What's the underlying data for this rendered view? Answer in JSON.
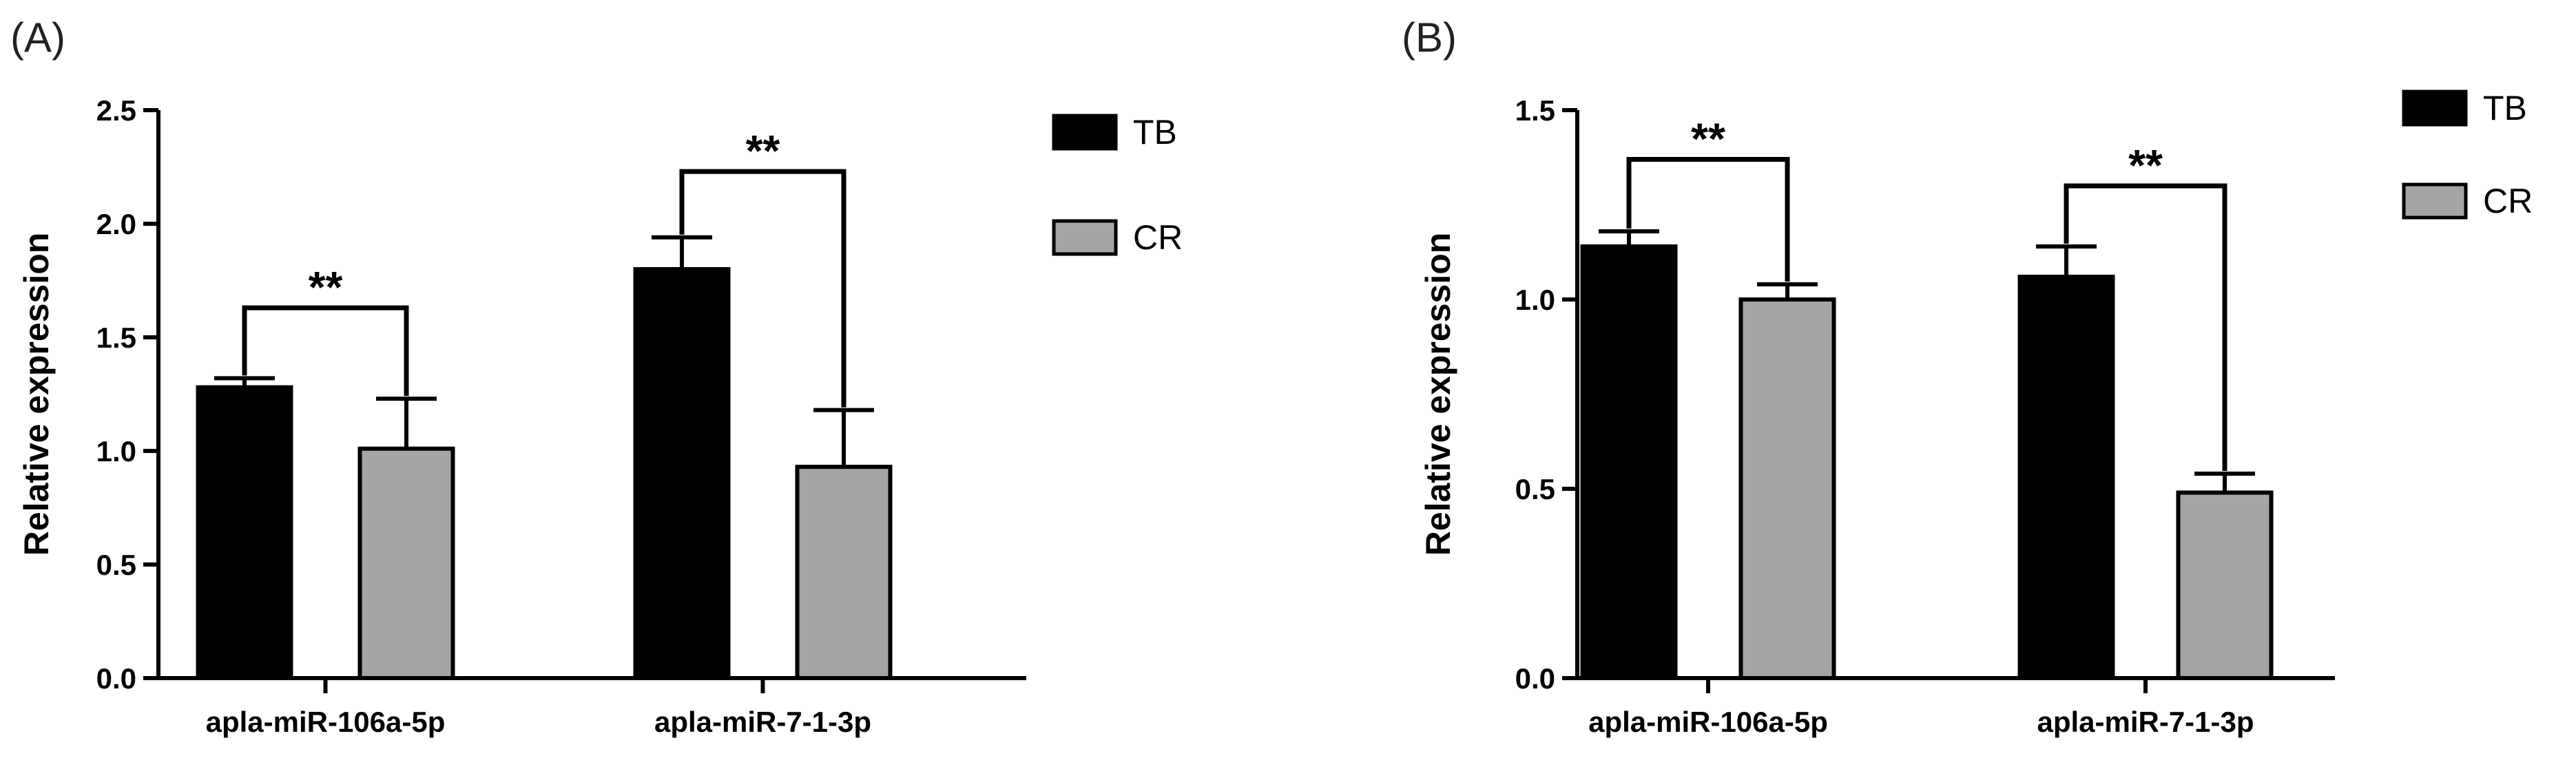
{
  "colors": {
    "TB": "#000000",
    "CR": "#a5a5a5",
    "axis": "#000000"
  },
  "chart_data": [
    {
      "type": "bar",
      "panel_label": "(A)",
      "title": "",
      "xlabel": "",
      "ylabel": "Relative expression",
      "ylim": [
        0,
        2.5
      ],
      "yticks": [
        "0.0",
        "0.5",
        "1.0",
        "1.5",
        "2.0",
        "2.5"
      ],
      "categories": [
        "apla-miR-106a-5p",
        "apla-miR-7-1-3p"
      ],
      "series": [
        {
          "name": "TB",
          "values": [
            1.28,
            1.8
          ],
          "errors": [
            0.04,
            0.14
          ]
        },
        {
          "name": "CR",
          "values": [
            1.01,
            0.93
          ],
          "errors": [
            0.22,
            0.25
          ]
        }
      ],
      "significance": [
        {
          "category": 0,
          "label": "**",
          "bracket_y": 1.63
        },
        {
          "category": 1,
          "label": "**",
          "bracket_y": 2.23
        }
      ],
      "legend": {
        "placement": "top-right",
        "entries": [
          "TB",
          "CR"
        ]
      }
    },
    {
      "type": "bar",
      "panel_label": "(B)",
      "title": "",
      "xlabel": "",
      "ylabel": "Relative expression",
      "ylim": [
        0,
        1.5
      ],
      "yticks": [
        "0.0",
        "0.5",
        "1.0",
        "1.5"
      ],
      "categories": [
        "apla-miR-106a-5p",
        "apla-miR-7-1-3p"
      ],
      "series": [
        {
          "name": "TB",
          "values": [
            1.14,
            1.06
          ],
          "errors": [
            0.04,
            0.08
          ]
        },
        {
          "name": "CR",
          "values": [
            1.0,
            0.49
          ],
          "errors": [
            0.04,
            0.05
          ]
        }
      ],
      "significance": [
        {
          "category": 0,
          "label": "**",
          "bracket_y": 1.37
        },
        {
          "category": 1,
          "label": "**",
          "bracket_y": 1.3
        }
      ],
      "legend": {
        "placement": "top-right",
        "entries": [
          "TB",
          "CR"
        ]
      }
    }
  ]
}
